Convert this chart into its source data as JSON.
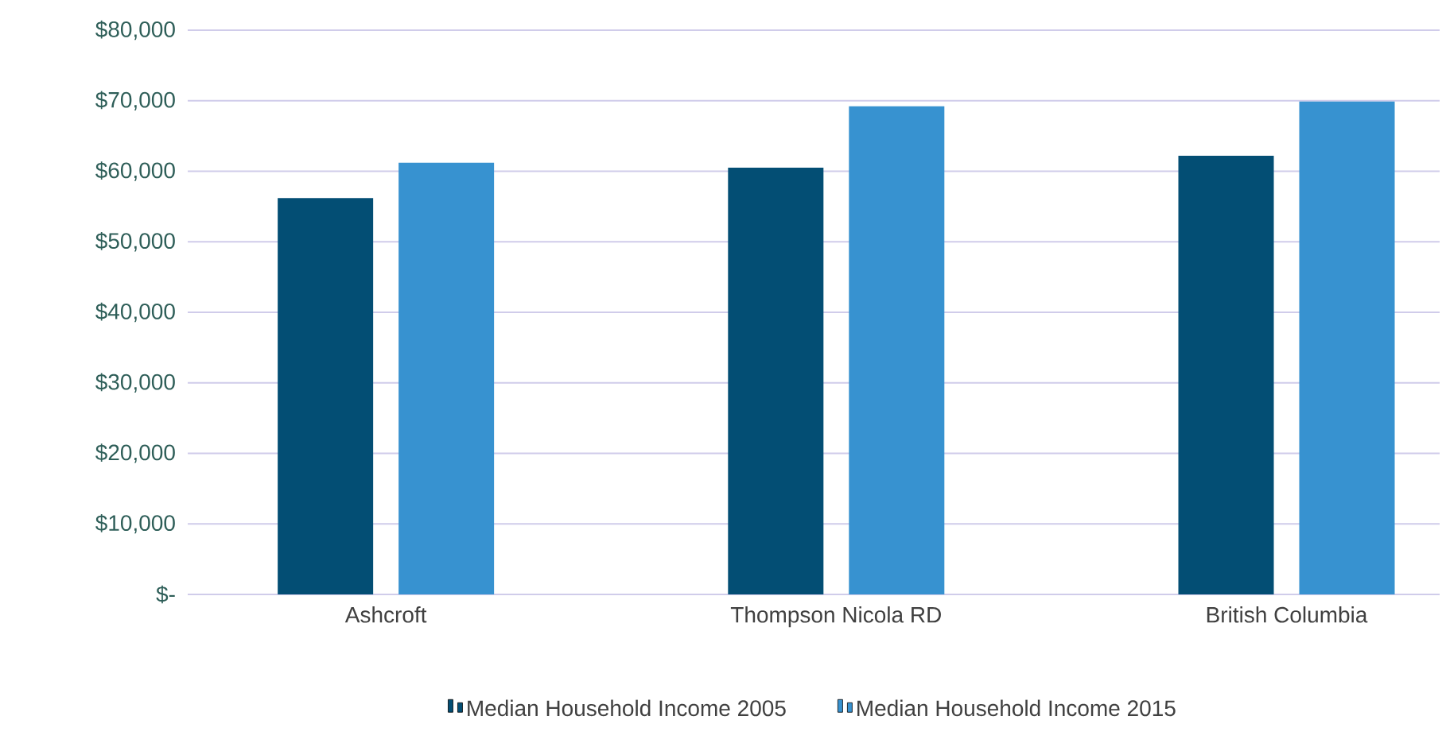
{
  "chart_data": {
    "type": "bar",
    "categories": [
      "Ashcroft",
      "Thompson Nicola RD",
      "British Columbia"
    ],
    "series": [
      {
        "name": "Median Household Income 2005",
        "color": "#034e74",
        "values": [
          56200,
          60500,
          62200
        ]
      },
      {
        "name": "Median Household Income 2015",
        "color": "#3792d0",
        "values": [
          61200,
          69200,
          69900
        ]
      }
    ],
    "ylim": [
      0,
      80000
    ],
    "yticks": [
      {
        "value": 0,
        "label": "$-"
      },
      {
        "value": 10000,
        "label": "$10,000"
      },
      {
        "value": 20000,
        "label": "$20,000"
      },
      {
        "value": 30000,
        "label": "$30,000"
      },
      {
        "value": 40000,
        "label": "$40,000"
      },
      {
        "value": 50000,
        "label": "$50,000"
      },
      {
        "value": 60000,
        "label": "$60,000"
      },
      {
        "value": 70000,
        "label": "$70,000"
      },
      {
        "value": 80000,
        "label": "$80,000"
      }
    ],
    "grid": "y",
    "legend": "bottom"
  }
}
